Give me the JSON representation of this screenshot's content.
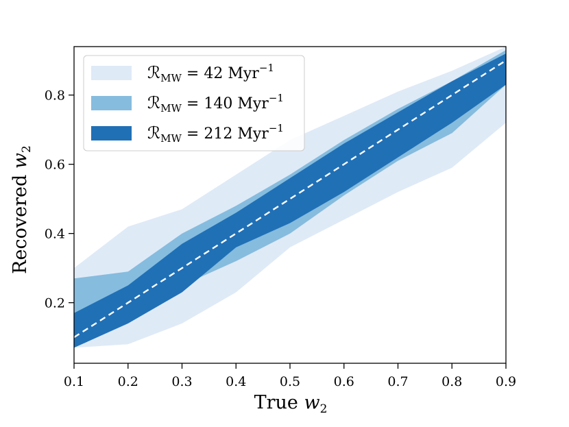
{
  "chart_data": {
    "type": "area",
    "title": "",
    "xlabel_text": "True ",
    "xlabel_var": "w",
    "xlabel_sub": "2",
    "ylabel_text": "Recovered ",
    "ylabel_var": "w",
    "ylabel_sub": "2",
    "xlim": [
      0.1,
      0.9
    ],
    "ylim": [
      0.025,
      0.94
    ],
    "xticks": [
      0.1,
      0.2,
      0.3,
      0.4,
      0.5,
      0.6,
      0.7,
      0.8,
      0.9
    ],
    "xtick_labels": [
      "0.1",
      "0.2",
      "0.3",
      "0.4",
      "0.5",
      "0.6",
      "0.7",
      "0.8",
      "0.9"
    ],
    "yticks": [
      0.2,
      0.4,
      0.6,
      0.8
    ],
    "ytick_labels": [
      "0.2",
      "0.4",
      "0.6",
      "0.8"
    ],
    "grid": false,
    "legend_position": "top-left",
    "x": [
      0.1,
      0.2,
      0.3,
      0.4,
      0.5,
      0.6,
      0.7,
      0.8,
      0.9
    ],
    "series": [
      {
        "name": "R_MW = 42 Myr^-1",
        "legend_symbol": "ℛ",
        "legend_sub": "MW",
        "legend_value": " = 42 Myr",
        "legend_exp": "−1",
        "color": "#dfeaf7",
        "lower": [
          0.07,
          0.08,
          0.14,
          0.23,
          0.36,
          0.44,
          0.52,
          0.59,
          0.72
        ],
        "upper": [
          0.3,
          0.42,
          0.47,
          0.57,
          0.67,
          0.74,
          0.81,
          0.87,
          0.94
        ]
      },
      {
        "name": "R_MW = 140 Myr^-1",
        "legend_symbol": "ℛ",
        "legend_sub": "MW",
        "legend_value": " = 140 Myr",
        "legend_exp": "−1",
        "color": "#86bcde",
        "lower": [
          0.07,
          0.15,
          0.25,
          0.32,
          0.4,
          0.51,
          0.61,
          0.69,
          0.83
        ],
        "upper": [
          0.27,
          0.29,
          0.4,
          0.48,
          0.57,
          0.67,
          0.76,
          0.84,
          0.93
        ]
      },
      {
        "name": "R_MW = 212 Myr^-1",
        "legend_symbol": "ℛ",
        "legend_sub": "MW",
        "legend_value": " = 212 Myr",
        "legend_exp": "−1",
        "color": "#2070b6",
        "lower": [
          0.07,
          0.14,
          0.23,
          0.36,
          0.43,
          0.52,
          0.62,
          0.72,
          0.83
        ],
        "upper": [
          0.17,
          0.25,
          0.37,
          0.46,
          0.56,
          0.66,
          0.75,
          0.84,
          0.92
        ]
      }
    ],
    "reference_line": {
      "name": "y = x",
      "style": "dashed",
      "color": "#ffffff",
      "x": [
        0.1,
        0.9
      ],
      "y": [
        0.1,
        0.9
      ]
    }
  }
}
